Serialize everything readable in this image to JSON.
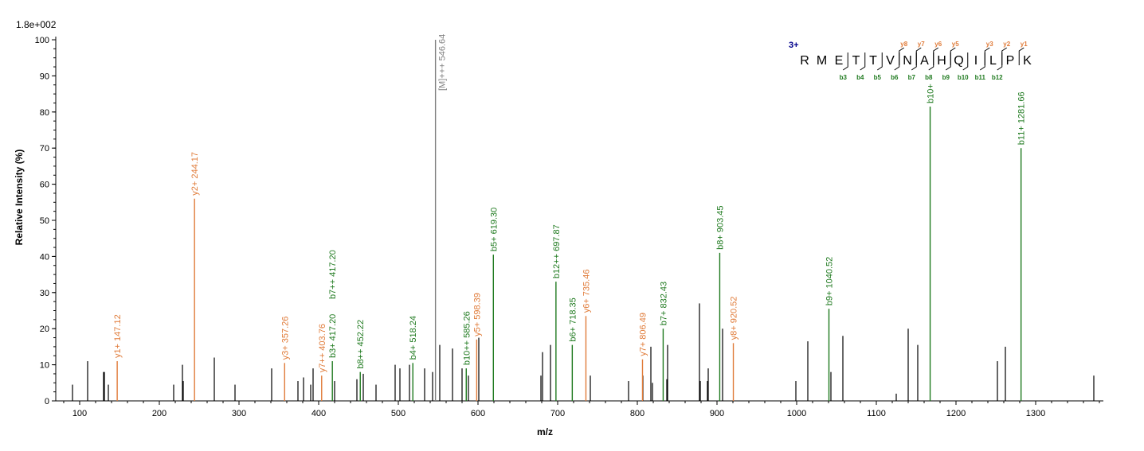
{
  "chart_data": {
    "type": "bar",
    "title": "",
    "scale_label": "1.8e+002",
    "xlabel": "m/z",
    "ylabel": "Relative   Intensity (%)",
    "xlim": [
      70,
      1385
    ],
    "ylim": [
      0,
      100
    ],
    "x_ticks": [
      100,
      200,
      300,
      400,
      500,
      600,
      700,
      800,
      900,
      1000,
      1100,
      1200,
      1300
    ],
    "y_ticks": [
      0,
      10,
      20,
      30,
      40,
      50,
      60,
      70,
      80,
      90,
      100
    ],
    "colors": {
      "b": "#1f7a1f",
      "y": "#e07b39",
      "precursor": "#808080",
      "unassigned": "#000000",
      "charge": "#00008b"
    },
    "unassigned_peaks": [
      {
        "mz": 91,
        "i": 4.5
      },
      {
        "mz": 110,
        "i": 11
      },
      {
        "mz": 130,
        "i": 8
      },
      {
        "mz": 131,
        "i": 8
      },
      {
        "mz": 136,
        "i": 4.5
      },
      {
        "mz": 218,
        "i": 4.5
      },
      {
        "mz": 229,
        "i": 10
      },
      {
        "mz": 230,
        "i": 5.5
      },
      {
        "mz": 269,
        "i": 12
      },
      {
        "mz": 295,
        "i": 4.5
      },
      {
        "mz": 341,
        "i": 9
      },
      {
        "mz": 374,
        "i": 5.5
      },
      {
        "mz": 381,
        "i": 6.5
      },
      {
        "mz": 390,
        "i": 4.5
      },
      {
        "mz": 393,
        "i": 9
      },
      {
        "mz": 420,
        "i": 5.5
      },
      {
        "mz": 448,
        "i": 6
      },
      {
        "mz": 456,
        "i": 7.5
      },
      {
        "mz": 472,
        "i": 4.5
      },
      {
        "mz": 496,
        "i": 10
      },
      {
        "mz": 502,
        "i": 9
      },
      {
        "mz": 514,
        "i": 10
      },
      {
        "mz": 533,
        "i": 9
      },
      {
        "mz": 543,
        "i": 8
      },
      {
        "mz": 552,
        "i": 15.5
      },
      {
        "mz": 568,
        "i": 14.5
      },
      {
        "mz": 580,
        "i": 9
      },
      {
        "mz": 588,
        "i": 7
      },
      {
        "mz": 601,
        "i": 17.5
      },
      {
        "mz": 679,
        "i": 7
      },
      {
        "mz": 681,
        "i": 13.5
      },
      {
        "mz": 691,
        "i": 15.5
      },
      {
        "mz": 741,
        "i": 7
      },
      {
        "mz": 789,
        "i": 5.5
      },
      {
        "mz": 807,
        "i": 7
      },
      {
        "mz": 817,
        "i": 15
      },
      {
        "mz": 819,
        "i": 5
      },
      {
        "mz": 837,
        "i": 6
      },
      {
        "mz": 838,
        "i": 15.5
      },
      {
        "mz": 878,
        "i": 27
      },
      {
        "mz": 879,
        "i": 5.5
      },
      {
        "mz": 888,
        "i": 5.5
      },
      {
        "mz": 889,
        "i": 9
      },
      {
        "mz": 907,
        "i": 20
      },
      {
        "mz": 999,
        "i": 5.5
      },
      {
        "mz": 1014,
        "i": 16.5
      },
      {
        "mz": 1043,
        "i": 8
      },
      {
        "mz": 1058,
        "i": 18
      },
      {
        "mz": 1125,
        "i": 2
      },
      {
        "mz": 1140,
        "i": 20
      },
      {
        "mz": 1152,
        "i": 15.5
      },
      {
        "mz": 1252,
        "i": 11
      },
      {
        "mz": 1262,
        "i": 15
      },
      {
        "mz": 1373,
        "i": 7
      }
    ],
    "annotated_peaks": [
      {
        "mz": 546.64,
        "i": 100,
        "series": "precursor",
        "label": "[M]+++ 546.64"
      },
      {
        "mz": 147.12,
        "i": 11,
        "series": "y",
        "label": "y1+ 147.12"
      },
      {
        "mz": 244.17,
        "i": 56,
        "series": "y",
        "label": "y2+ 244.17"
      },
      {
        "mz": 357.26,
        "i": 10.5,
        "series": "y",
        "label": "y3+ 357.26"
      },
      {
        "mz": 403.76,
        "i": 7,
        "series": "y",
        "label": "y7++ 403.76"
      },
      {
        "mz": 417.2,
        "i": 11,
        "series": "b",
        "label": "b3+ 417.20"
      },
      {
        "mz": 417.2,
        "i": 11,
        "series": "b",
        "label": "b7++ 417.20",
        "stack": 1
      },
      {
        "mz": 452.22,
        "i": 8,
        "series": "b",
        "label": "b8++ 452.22"
      },
      {
        "mz": 518.24,
        "i": 10.5,
        "series": "b",
        "label": "b4+ 518.24"
      },
      {
        "mz": 585.26,
        "i": 9,
        "series": "b",
        "label": "b10++ 585.26"
      },
      {
        "mz": 598.39,
        "i": 17,
        "series": "y",
        "label": "y5+ 598.39"
      },
      {
        "mz": 619.3,
        "i": 40.5,
        "series": "b",
        "label": "b5+ 619.30"
      },
      {
        "mz": 697.87,
        "i": 33,
        "series": "b",
        "label": "b12++ 697.87"
      },
      {
        "mz": 718.35,
        "i": 15.5,
        "series": "b",
        "label": "b6+ 718.35"
      },
      {
        "mz": 735.46,
        "i": 23.5,
        "series": "y",
        "label": "y6+ 735.46"
      },
      {
        "mz": 806.49,
        "i": 11.5,
        "series": "y",
        "label": "y7+ 806.49"
      },
      {
        "mz": 832.43,
        "i": 20,
        "series": "b",
        "label": "b7+ 832.43"
      },
      {
        "mz": 903.45,
        "i": 41,
        "series": "b",
        "label": "b8+ 903.45"
      },
      {
        "mz": 920.52,
        "i": 16,
        "series": "y",
        "label": "y8+ 920.52"
      },
      {
        "mz": 1040.52,
        "i": 25.5,
        "series": "b",
        "label": "b9+ 1040.52"
      },
      {
        "mz": 1167.55,
        "i": 81.5,
        "series": "b",
        "label": "b10+"
      },
      {
        "mz": 1281.66,
        "i": 70,
        "series": "b",
        "label": "b11+ 1281.66"
      }
    ],
    "sequence": {
      "charge": "3+",
      "residues": [
        "R",
        "M",
        "E",
        "T",
        "T",
        "V",
        "N",
        "A",
        "H",
        "Q",
        "I",
        "L",
        "P",
        "K"
      ],
      "y_ions": [
        {
          "after": 6,
          "label": "y8"
        },
        {
          "after": 7,
          "label": "y7"
        },
        {
          "after": 8,
          "label": "y6"
        },
        {
          "after": 9,
          "label": "y5"
        },
        {
          "after": 11,
          "label": "y3"
        },
        {
          "after": 12,
          "label": "y2"
        },
        {
          "after": 13,
          "label": "y1"
        }
      ],
      "b_ions": [
        {
          "after": 3,
          "label": "b3"
        },
        {
          "after": 4,
          "label": "b4"
        },
        {
          "after": 5,
          "label": "b5"
        },
        {
          "after": 6,
          "label": "b6"
        },
        {
          "after": 7,
          "label": "b7"
        },
        {
          "after": 8,
          "label": "b8"
        },
        {
          "after": 9,
          "label": "b9"
        },
        {
          "after": 10,
          "label": "b10"
        },
        {
          "after": 11,
          "label": "b11"
        },
        {
          "after": 12,
          "label": "b12"
        }
      ]
    }
  }
}
